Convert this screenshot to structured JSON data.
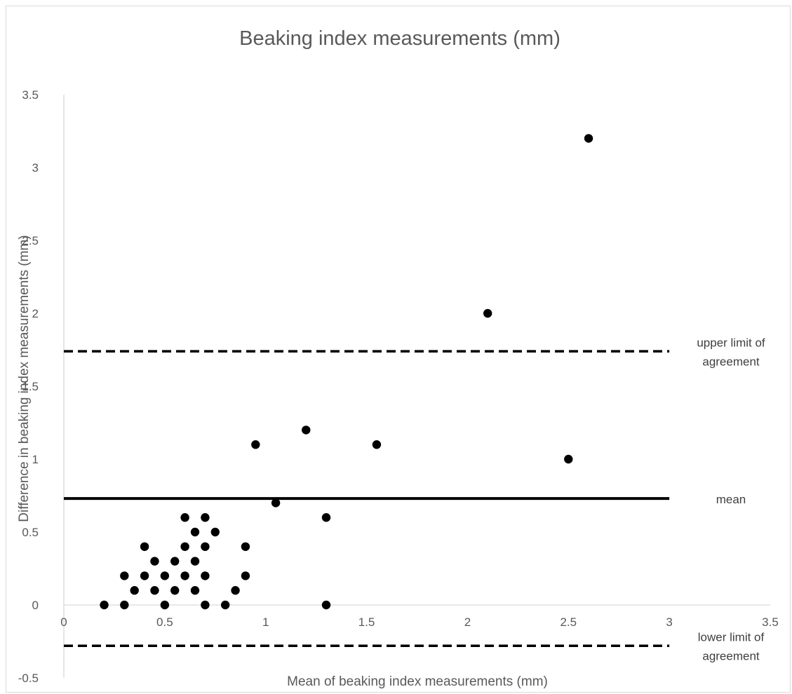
{
  "chart_data": {
    "type": "scatter",
    "title": "Beaking index measurements (mm)",
    "xlabel": "Mean of beaking index measurements (mm)",
    "ylabel": "Difference in beaking index measurements (mm)",
    "xlim": [
      0,
      3.5
    ],
    "ylim": [
      -0.5,
      3.5
    ],
    "x_ticks": [
      "0",
      "0.5",
      "1",
      "1.5",
      "2",
      "2.5",
      "3",
      "3.5"
    ],
    "y_ticks": [
      "-0.5",
      "0",
      "0.5",
      "1",
      "1.5",
      "2",
      "2.5",
      "3",
      "3.5"
    ],
    "grid": false,
    "marker_color": "#000000",
    "points": [
      [
        0.2,
        0.0
      ],
      [
        0.3,
        0.0
      ],
      [
        0.5,
        0.0
      ],
      [
        0.7,
        0.0
      ],
      [
        0.8,
        0.0
      ],
      [
        1.3,
        0.0
      ],
      [
        0.35,
        0.1
      ],
      [
        0.45,
        0.1
      ],
      [
        0.55,
        0.1
      ],
      [
        0.65,
        0.1
      ],
      [
        0.85,
        0.1
      ],
      [
        0.3,
        0.2
      ],
      [
        0.4,
        0.2
      ],
      [
        0.5,
        0.2
      ],
      [
        0.6,
        0.2
      ],
      [
        0.7,
        0.2
      ],
      [
        0.9,
        0.2
      ],
      [
        0.45,
        0.3
      ],
      [
        0.55,
        0.3
      ],
      [
        0.65,
        0.3
      ],
      [
        0.4,
        0.4
      ],
      [
        0.6,
        0.4
      ],
      [
        0.7,
        0.4
      ],
      [
        0.9,
        0.4
      ],
      [
        0.65,
        0.5
      ],
      [
        0.75,
        0.5
      ],
      [
        0.6,
        0.6
      ],
      [
        0.7,
        0.6
      ],
      [
        1.3,
        0.6
      ],
      [
        1.05,
        0.7
      ],
      [
        0.95,
        1.1
      ],
      [
        1.2,
        1.2
      ],
      [
        1.55,
        1.1
      ],
      [
        2.5,
        1.0
      ],
      [
        2.1,
        2.0
      ],
      [
        2.6,
        3.2
      ]
    ],
    "reference_lines": [
      {
        "label": "upper limit of agreement",
        "label_lines": [
          "upper limit of",
          "agreement"
        ],
        "y": 1.74,
        "style": "dashed"
      },
      {
        "label": "mean",
        "label_lines": [
          "mean"
        ],
        "y": 0.73,
        "style": "solid"
      },
      {
        "label": "lower limit of agreement",
        "label_lines": [
          "lower limit of",
          "agreement"
        ],
        "y": -0.28,
        "style": "dashed"
      }
    ]
  }
}
